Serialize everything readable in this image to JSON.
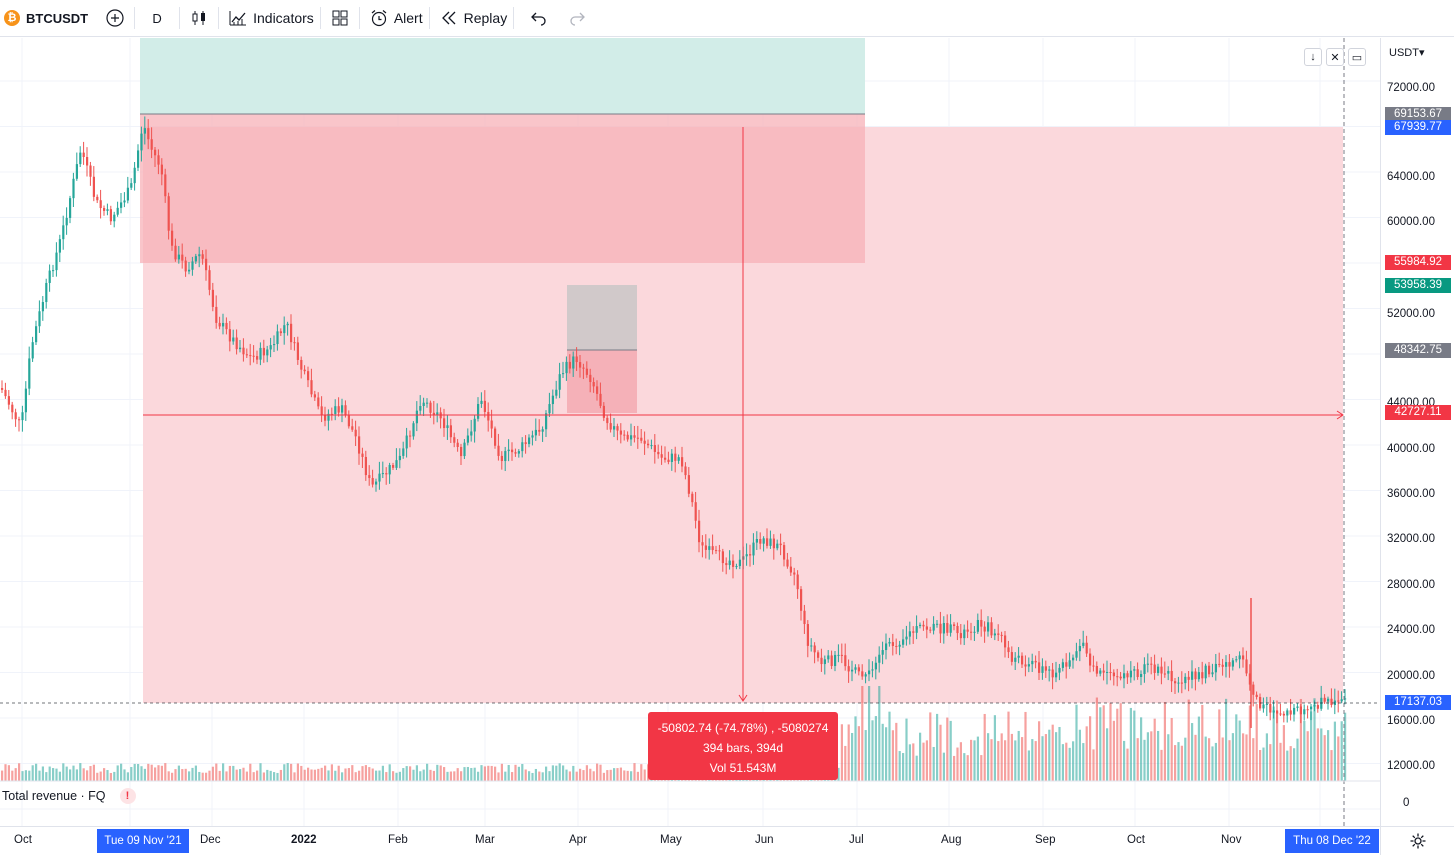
{
  "toolbar": {
    "symbol": "BTCUSDT",
    "interval": "D",
    "indicators_label": "Indicators",
    "alert_label": "Alert",
    "replay_label": "Replay"
  },
  "price_axis": {
    "currency": "USDT▾",
    "labels": [
      "72000.00",
      "64000.00",
      "60000.00",
      "52000.00",
      "44000.00",
      "40000.00",
      "36000.00",
      "32000.00",
      "28000.00",
      "24000.00",
      "20000.00",
      "16000.00",
      "12000.00"
    ],
    "badges": [
      {
        "text": "69153.67",
        "color": "#787b86"
      },
      {
        "text": "67939.77",
        "color": "#2962ff"
      },
      {
        "text": "55984.92",
        "color": "#f23645"
      },
      {
        "text": "53958.39",
        "color": "#089981"
      },
      {
        "text": "48342.75",
        "color": "#787b86"
      },
      {
        "text": "42727.11",
        "color": "#f23645"
      },
      {
        "text": "17137.03",
        "color": "#2962ff"
      }
    ],
    "volume_pane_label": "0"
  },
  "time_axis": {
    "labels": [
      "Oct",
      "Dec",
      "2022",
      "Feb",
      "Mar",
      "Apr",
      "May",
      "Jun",
      "Jul",
      "Aug",
      "Sep",
      "Oct",
      "Nov"
    ],
    "start_badge": "Tue 09 Nov '21",
    "end_badge": "Thu 08 Dec '22"
  },
  "measure": {
    "line1": "-50802.74 (-74.78%) , -5080274",
    "line2": "394 bars, 394d",
    "line3": "Vol 51.543M"
  },
  "indicator": {
    "name": "Total revenue · FQ",
    "warning": "!"
  },
  "colors": {
    "up": "#26a69a",
    "down": "#ef5350",
    "measure_fill": "#f23645",
    "accent": "#2962ff"
  }
}
